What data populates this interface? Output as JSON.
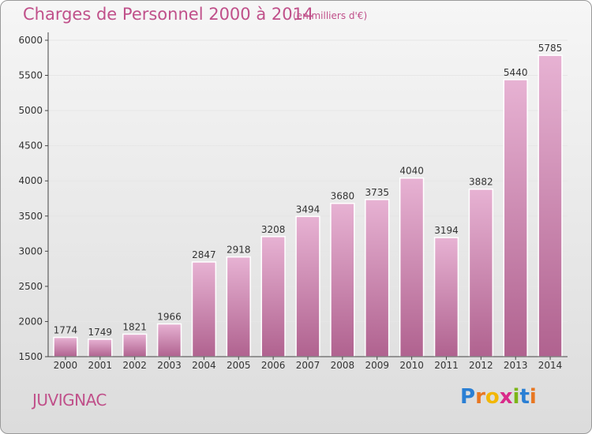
{
  "title": "Charges de Personnel 2000 à 2014",
  "unit_note": "(en milliers d'€)",
  "commune": "JUVIGNAC",
  "brand": {
    "letters": [
      "P",
      "r",
      "o",
      "x",
      "i",
      "t",
      "i"
    ],
    "colors": [
      "#2a7fd4",
      "#e87722",
      "#f2b705",
      "#d92b8a",
      "#7cb518",
      "#2a7fd4",
      "#e87722"
    ]
  },
  "colors": {
    "bar_top": "#e7b2d3",
    "bar_bottom": "#b0628f",
    "axis": "#444444",
    "grid": "#e6e6e6"
  },
  "chart_data": {
    "type": "bar",
    "title": "Charges de Personnel 2000 à 2014",
    "categories": [
      "2000",
      "2001",
      "2002",
      "2003",
      "2004",
      "2005",
      "2006",
      "2007",
      "2008",
      "2009",
      "2010",
      "2011",
      "2012",
      "2013",
      "2014"
    ],
    "values": [
      1774,
      1749,
      1821,
      1966,
      2847,
      2918,
      3208,
      3494,
      3680,
      3735,
      4040,
      3194,
      3882,
      5440,
      5785
    ],
    "ylim": [
      1500,
      6000
    ],
    "yticks": [
      1500,
      2000,
      2500,
      3000,
      3500,
      4000,
      4500,
      5000,
      5500,
      6000
    ],
    "grid": true,
    "data_labels": true
  }
}
